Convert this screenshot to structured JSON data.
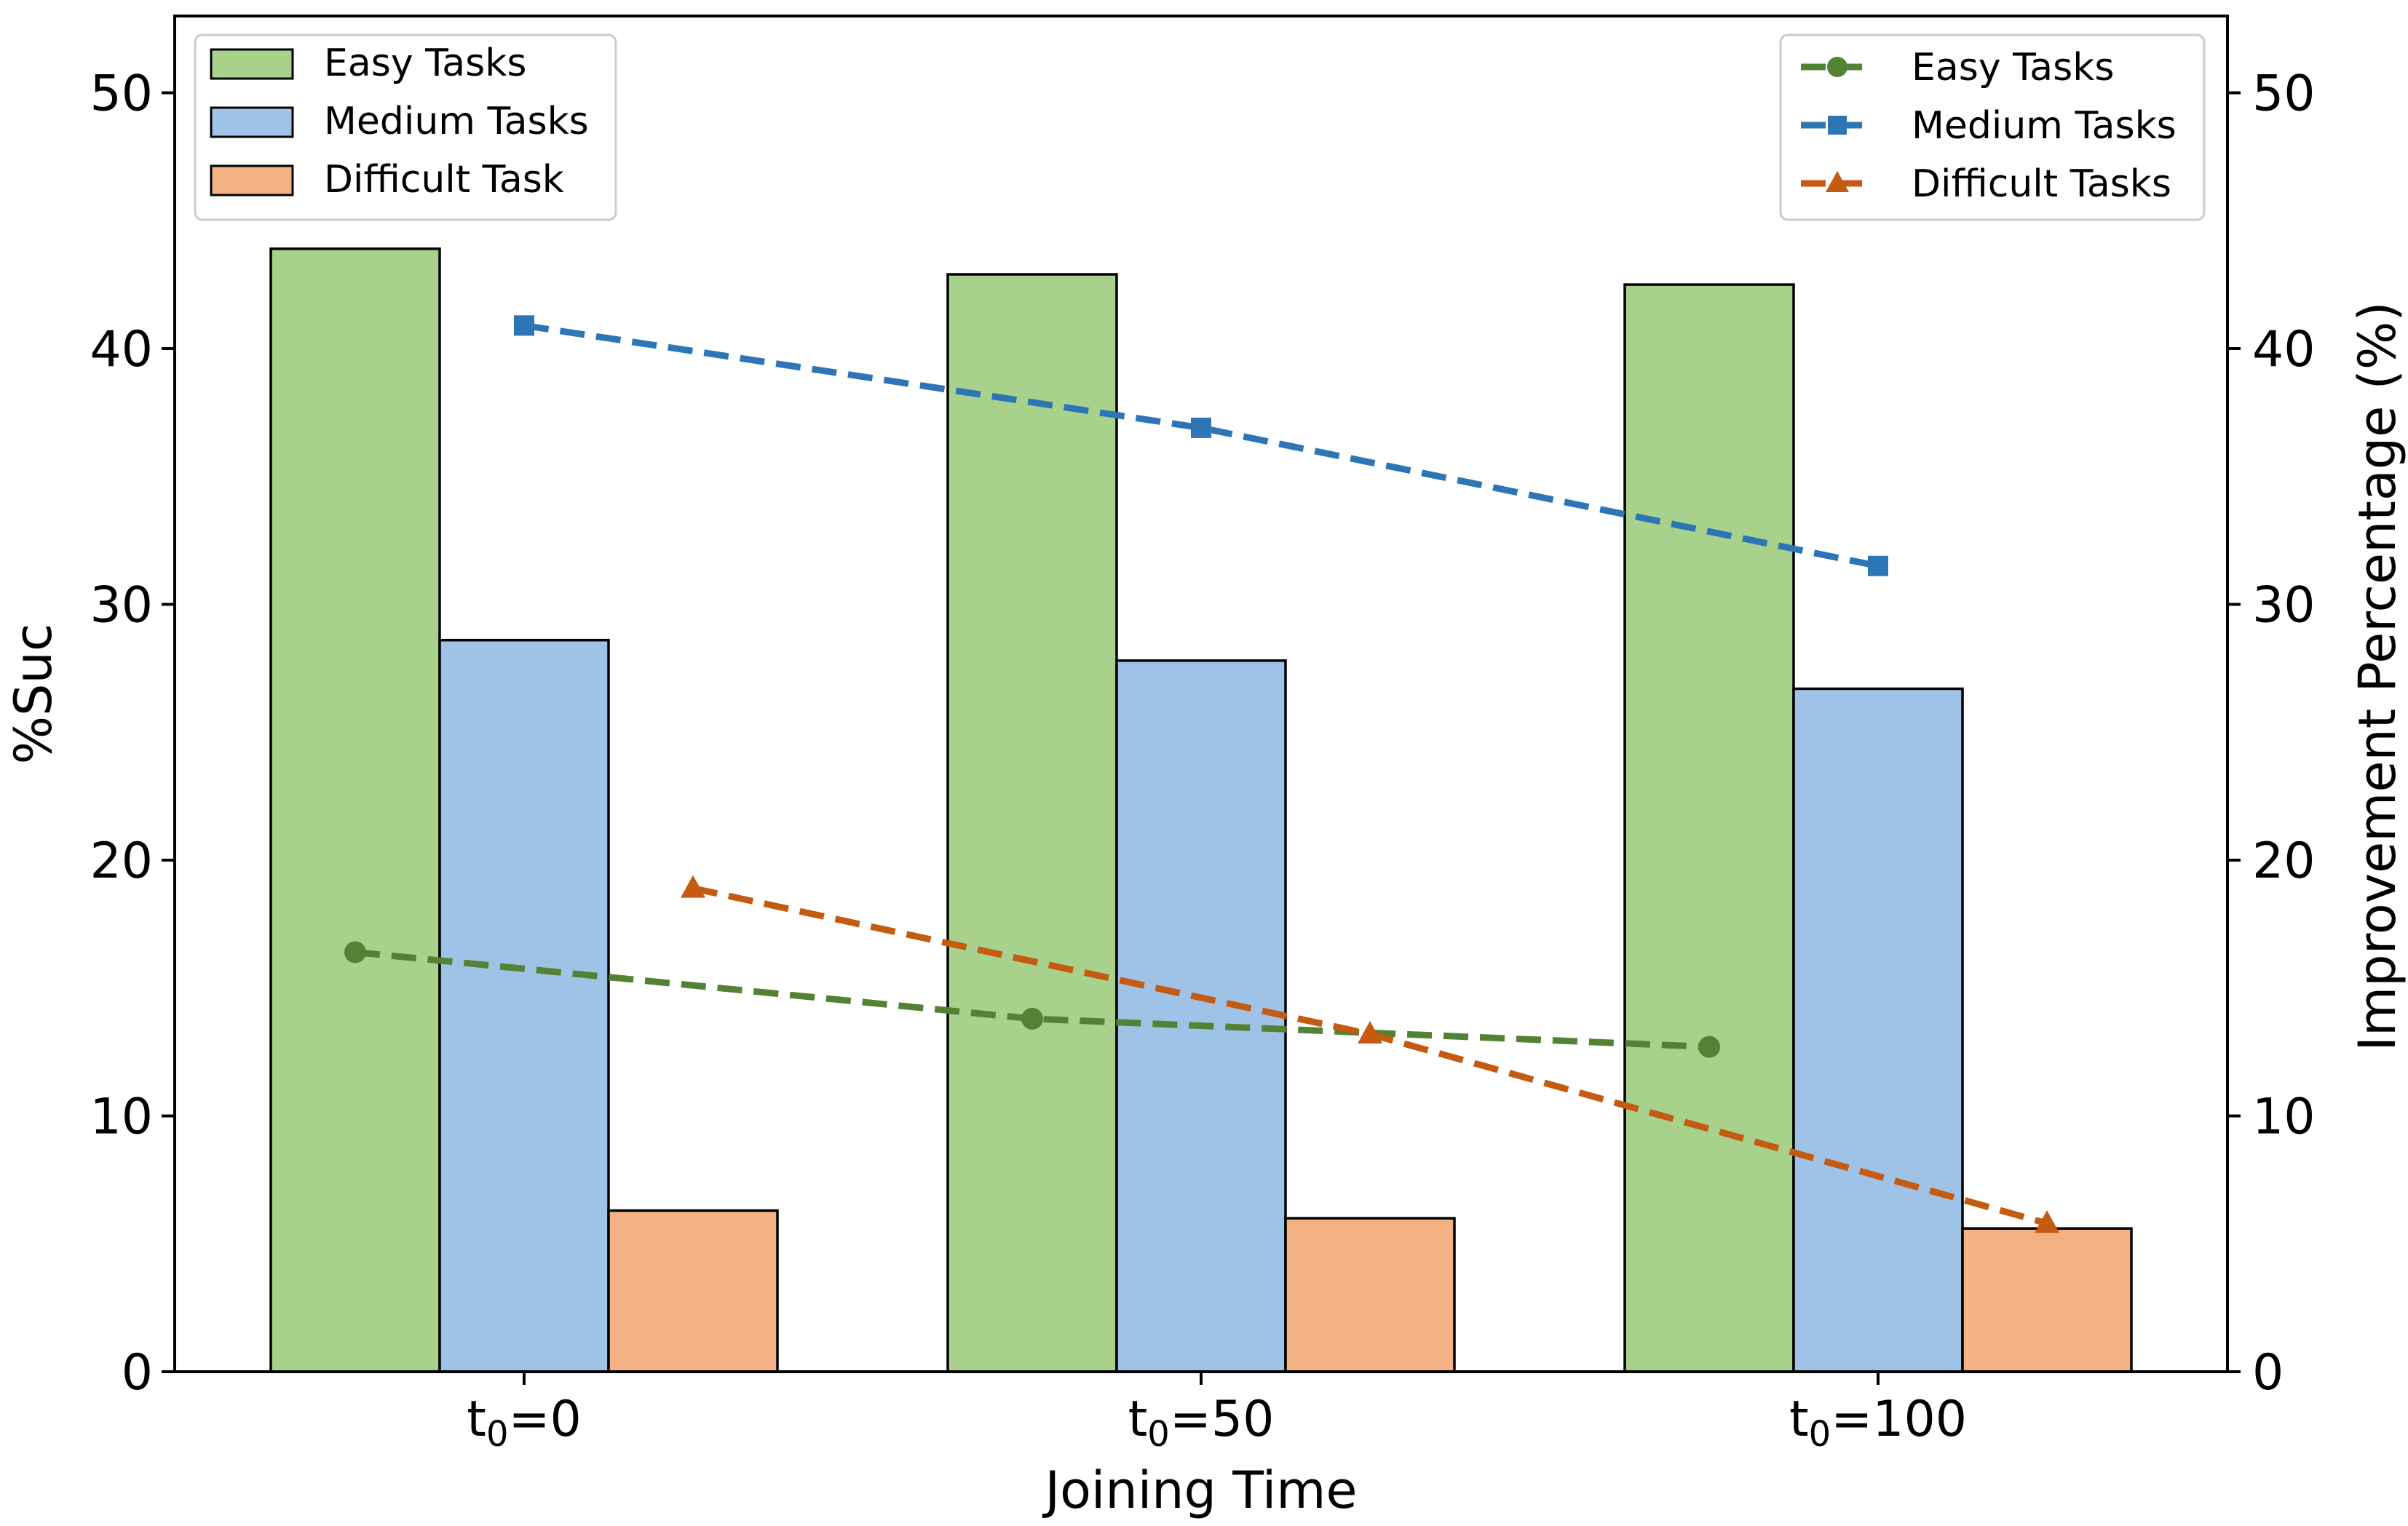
{
  "chart_data": {
    "type": "bar",
    "xlabel": "Joining Time",
    "ylabel_left": "%Suc",
    "ylabel_right": "Improvement Percentage (%)",
    "ylim_left": [
      0,
      53
    ],
    "ylim_right": [
      0,
      53
    ],
    "yticks": [
      0,
      10,
      20,
      30,
      40,
      50
    ],
    "categories": [
      {
        "base": "t",
        "sub": "0",
        "rest": "=0"
      },
      {
        "base": "t",
        "sub": "0",
        "rest": "=50"
      },
      {
        "base": "t",
        "sub": "0",
        "rest": "=100"
      }
    ],
    "bar_series": [
      {
        "name": "Easy Tasks",
        "values": [
          43.9,
          42.9,
          42.5
        ],
        "color": "#a8d28c"
      },
      {
        "name": "Medium Tasks",
        "values": [
          28.6,
          27.8,
          26.7
        ],
        "color": "#9fc3e6"
      },
      {
        "name": "Difficult Task",
        "values": [
          6.3,
          6.0,
          5.6
        ],
        "color": "#f4b183"
      }
    ],
    "line_series": [
      {
        "name": "Easy Tasks",
        "values": [
          16.4,
          13.8,
          12.7
        ],
        "color": "#548235",
        "marker": "circle"
      },
      {
        "name": "Medium Tasks",
        "values": [
          40.9,
          36.9,
          31.5
        ],
        "color": "#2e75b6",
        "marker": "square"
      },
      {
        "name": "Difficult Tasks",
        "values": [
          18.9,
          13.2,
          5.8
        ],
        "color": "#c55a11",
        "marker": "triangle"
      }
    ],
    "legend_left_position": "upper-left",
    "legend_right_position": "upper-right",
    "grid": false
  }
}
